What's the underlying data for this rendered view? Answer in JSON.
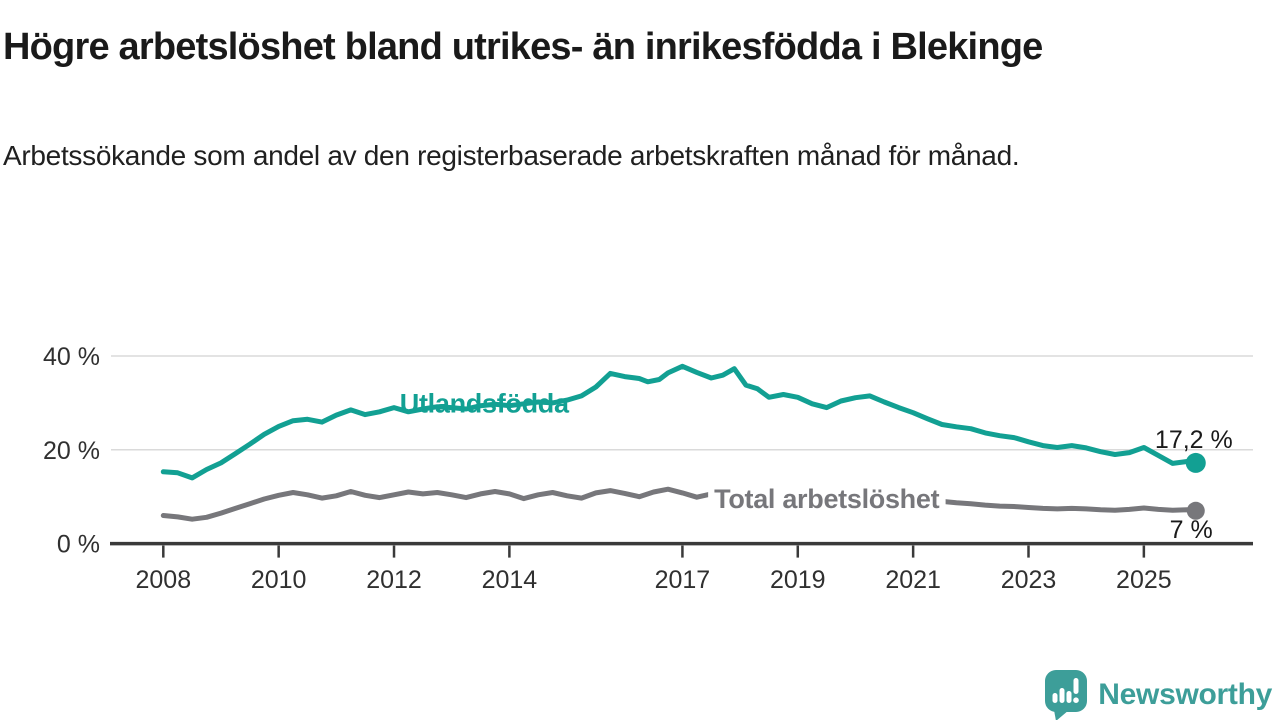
{
  "header": {
    "title": "Högre arbetslöshet bland utrikes- än inrikesfödda i Blekinge",
    "subtitle": "Arbetssökande som andel av den registerbaserade arbetskraften månad för månad."
  },
  "footer": {
    "brand": "Newsworthy",
    "brand_color": "#3D9E99",
    "logo_icon": "speech-bubble-bar-chart-icon"
  },
  "chart_data": {
    "type": "line",
    "title": "Högre arbetslöshet bland utrikes- än inrikesfödda i Blekinge",
    "subtitle": "Arbetssökande som andel av den registerbaserade arbetskraften månad för månad.",
    "unit": "%",
    "grid": "horizontal",
    "legend_position": "inline-labels",
    "x_axis": {
      "range": [
        2008,
        2025.9
      ],
      "ticks": [
        {
          "label": "2008",
          "year": 2008
        },
        {
          "label": "2010",
          "year": 2010
        },
        {
          "label": "2012",
          "year": 2012
        },
        {
          "label": "2014",
          "year": 2014
        },
        {
          "label": "2017",
          "year": 2017
        },
        {
          "label": "2019",
          "year": 2019
        },
        {
          "label": "2021",
          "year": 2021
        },
        {
          "label": "2023",
          "year": 2023
        },
        {
          "label": "2025",
          "year": 2025
        }
      ]
    },
    "y_axis": {
      "range": [
        0,
        42
      ],
      "ticks": [
        {
          "label": "0 %",
          "value": 0
        },
        {
          "label": "20 %",
          "value": 20
        },
        {
          "label": "40 %",
          "value": 40
        }
      ]
    },
    "series": [
      {
        "name": "Utlandsfödda",
        "color": "#12A093",
        "end_label": "17,2 %",
        "end_value": 17.2,
        "inline_label": {
          "text": "Utlandsfödda",
          "x_year": 2012.1,
          "y_value": 28.0,
          "masked": false
        },
        "points": [
          [
            2008.0,
            15.3
          ],
          [
            2008.25,
            15.1
          ],
          [
            2008.5,
            14.0
          ],
          [
            2008.75,
            15.8
          ],
          [
            2009.0,
            17.2
          ],
          [
            2009.25,
            19.2
          ],
          [
            2009.5,
            21.2
          ],
          [
            2009.75,
            23.3
          ],
          [
            2010.0,
            25.0
          ],
          [
            2010.25,
            26.2
          ],
          [
            2010.5,
            26.5
          ],
          [
            2010.75,
            25.9
          ],
          [
            2011.0,
            27.4
          ],
          [
            2011.25,
            28.5
          ],
          [
            2011.5,
            27.5
          ],
          [
            2011.75,
            28.1
          ],
          [
            2012.0,
            29.0
          ],
          [
            2012.25,
            28.1
          ],
          [
            2012.5,
            28.7
          ],
          [
            2012.75,
            29.2
          ],
          [
            2013.0,
            29.0
          ],
          [
            2013.25,
            28.7
          ],
          [
            2013.5,
            29.4
          ],
          [
            2013.75,
            29.7
          ],
          [
            2014.0,
            29.4
          ],
          [
            2014.25,
            29.8
          ],
          [
            2014.5,
            30.2
          ],
          [
            2014.75,
            30.0
          ],
          [
            2015.0,
            30.6
          ],
          [
            2015.25,
            31.5
          ],
          [
            2015.5,
            33.4
          ],
          [
            2015.75,
            36.3
          ],
          [
            2016.0,
            35.6
          ],
          [
            2016.25,
            35.2
          ],
          [
            2016.4,
            34.5
          ],
          [
            2016.6,
            35.0
          ],
          [
            2016.75,
            36.4
          ],
          [
            2017.0,
            37.8
          ],
          [
            2017.25,
            36.5
          ],
          [
            2017.5,
            35.3
          ],
          [
            2017.7,
            35.9
          ],
          [
            2017.9,
            37.3
          ],
          [
            2018.1,
            33.8
          ],
          [
            2018.3,
            33.0
          ],
          [
            2018.5,
            31.2
          ],
          [
            2018.75,
            31.8
          ],
          [
            2019.0,
            31.2
          ],
          [
            2019.25,
            29.8
          ],
          [
            2019.5,
            29.0
          ],
          [
            2019.75,
            30.4
          ],
          [
            2020.0,
            31.1
          ],
          [
            2020.25,
            31.5
          ],
          [
            2020.5,
            30.2
          ],
          [
            2020.75,
            29.0
          ],
          [
            2021.0,
            27.9
          ],
          [
            2021.25,
            26.6
          ],
          [
            2021.5,
            25.4
          ],
          [
            2021.75,
            24.9
          ],
          [
            2022.0,
            24.5
          ],
          [
            2022.25,
            23.6
          ],
          [
            2022.5,
            23.0
          ],
          [
            2022.75,
            22.6
          ],
          [
            2023.0,
            21.7
          ],
          [
            2023.25,
            20.9
          ],
          [
            2023.5,
            20.5
          ],
          [
            2023.75,
            20.9
          ],
          [
            2024.0,
            20.4
          ],
          [
            2024.25,
            19.6
          ],
          [
            2024.5,
            19.0
          ],
          [
            2024.75,
            19.4
          ],
          [
            2025.0,
            20.5
          ],
          [
            2025.25,
            18.8
          ],
          [
            2025.5,
            17.1
          ],
          [
            2025.75,
            17.5
          ],
          [
            2025.9,
            17.2
          ]
        ]
      },
      {
        "name": "Total arbetslöshet",
        "color": "#77777B",
        "end_label": "7 %",
        "end_value": 7.0,
        "inline_label": {
          "text": "Total arbetslöshet",
          "x_year": 2017.55,
          "y_value": 7.6,
          "masked": true
        },
        "points": [
          [
            2008.0,
            6.0
          ],
          [
            2008.25,
            5.7
          ],
          [
            2008.5,
            5.2
          ],
          [
            2008.75,
            5.6
          ],
          [
            2009.0,
            6.5
          ],
          [
            2009.25,
            7.5
          ],
          [
            2009.5,
            8.5
          ],
          [
            2009.75,
            9.5
          ],
          [
            2010.0,
            10.3
          ],
          [
            2010.25,
            10.9
          ],
          [
            2010.5,
            10.4
          ],
          [
            2010.75,
            9.7
          ],
          [
            2011.0,
            10.2
          ],
          [
            2011.25,
            11.1
          ],
          [
            2011.5,
            10.3
          ],
          [
            2011.75,
            9.8
          ],
          [
            2012.0,
            10.4
          ],
          [
            2012.25,
            11.0
          ],
          [
            2012.5,
            10.6
          ],
          [
            2012.75,
            10.9
          ],
          [
            2013.0,
            10.4
          ],
          [
            2013.25,
            9.8
          ],
          [
            2013.5,
            10.6
          ],
          [
            2013.75,
            11.1
          ],
          [
            2014.0,
            10.6
          ],
          [
            2014.25,
            9.6
          ],
          [
            2014.5,
            10.4
          ],
          [
            2014.75,
            10.9
          ],
          [
            2015.0,
            10.2
          ],
          [
            2015.25,
            9.7
          ],
          [
            2015.5,
            10.8
          ],
          [
            2015.75,
            11.3
          ],
          [
            2016.0,
            10.7
          ],
          [
            2016.25,
            10.0
          ],
          [
            2016.5,
            11.0
          ],
          [
            2016.75,
            11.6
          ],
          [
            2017.0,
            10.8
          ],
          [
            2017.25,
            9.9
          ],
          [
            2017.5,
            10.6
          ],
          [
            2017.75,
            10.9
          ],
          [
            2018.0,
            10.4
          ],
          [
            2018.25,
            9.7
          ],
          [
            2018.5,
            10.0
          ],
          [
            2018.75,
            10.5
          ],
          [
            2019.0,
            10.1
          ],
          [
            2019.25,
            9.6
          ],
          [
            2019.5,
            9.9
          ],
          [
            2019.75,
            10.4
          ],
          [
            2020.0,
            10.6
          ],
          [
            2020.25,
            11.1
          ],
          [
            2020.5,
            10.8
          ],
          [
            2020.75,
            10.3
          ],
          [
            2021.0,
            9.9
          ],
          [
            2021.25,
            9.4
          ],
          [
            2021.5,
            9.0
          ],
          [
            2021.75,
            8.7
          ],
          [
            2022.0,
            8.5
          ],
          [
            2022.25,
            8.2
          ],
          [
            2022.5,
            8.0
          ],
          [
            2022.75,
            7.9
          ],
          [
            2023.0,
            7.7
          ],
          [
            2023.25,
            7.5
          ],
          [
            2023.5,
            7.4
          ],
          [
            2023.75,
            7.5
          ],
          [
            2024.0,
            7.4
          ],
          [
            2024.25,
            7.2
          ],
          [
            2024.5,
            7.1
          ],
          [
            2024.75,
            7.3
          ],
          [
            2025.0,
            7.6
          ],
          [
            2025.25,
            7.3
          ],
          [
            2025.5,
            7.1
          ],
          [
            2025.75,
            7.2
          ],
          [
            2025.9,
            7.0
          ]
        ]
      }
    ]
  }
}
